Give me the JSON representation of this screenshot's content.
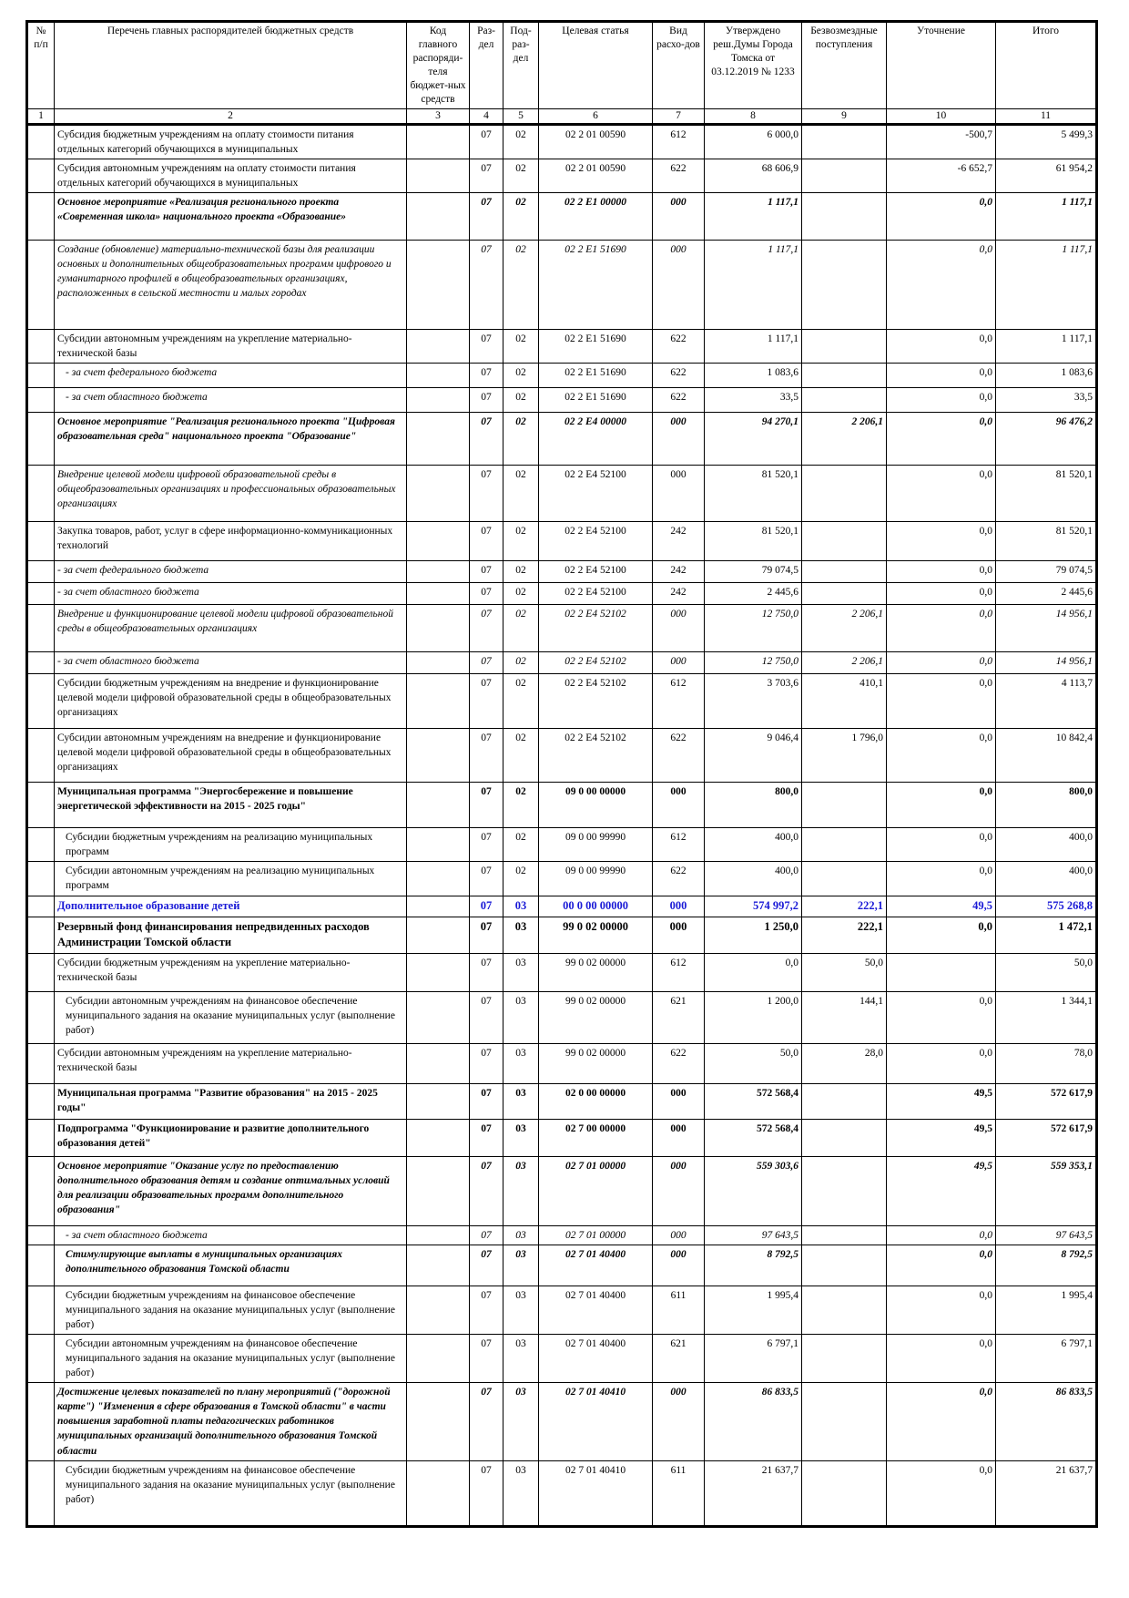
{
  "header": {
    "cols": [
      "№ п/п",
      "Перечень главных распорядителей бюджетных средств",
      "Код главного распоряди-теля бюджет-ных средств",
      "Раз-дел",
      "Под-раз-дел",
      "Целевая статья",
      "Вид расхо-дов",
      "Утверждено реш.Думы Города Томска от 03.12.2019 № 1233",
      "Безвозмездные поступления",
      "Уточнение",
      "Итого"
    ],
    "nums": [
      "1",
      "2",
      "3",
      "4",
      "5",
      "6",
      "7",
      "8",
      "9",
      "10",
      "11"
    ]
  },
  "rows": [
    {
      "text": "Субсидия бюджетным учреждениям на оплату стоимости питания отдельных категорий обучающихся в муниципальных",
      "rz": "07",
      "pr": "02",
      "cs": "02 2 01 00590",
      "vr": "612",
      "v8": "6 000,0",
      "v9": "",
      "v10": "-500,7",
      "v11": "5 499,3",
      "style": ""
    },
    {
      "text": "Субсидия автономным учреждениям на оплату стоимости питания отдельных категорий обучающихся в муниципальных",
      "rz": "07",
      "pr": "02",
      "cs": "02 2 01 00590",
      "vr": "622",
      "v8": "68 606,9",
      "v9": "",
      "v10": "-6 652,7",
      "v11": "61 954,2",
      "style": ""
    },
    {
      "text": "Основное мероприятие «Реализация регионального проекта «Современная школа» национального проекта «Образование»",
      "rz": "07",
      "pr": "02",
      "cs": "02 2 E1 00000",
      "vr": "000",
      "v8": "1 117,1",
      "v9": "",
      "v10": "0,0",
      "v11": "1 117,1",
      "style": "bi"
    },
    {
      "text": "Создание (обновление) материально-технической базы для реализации основных и дополнительных общеобразовательных программ цифрового и гуманитарного профилей в общеобразовательных организациях, расположенных в сельской местности и малых городах",
      "rz": "07",
      "pr": "02",
      "cs": "02 2 E1 51690",
      "vr": "000",
      "v8": "1 117,1",
      "v9": "",
      "v10": "0,0",
      "v11": "1 117,1",
      "style": "i"
    },
    {
      "text": "Субсидии автономным учреждениям на укрепление материально-технической базы",
      "rz": "07",
      "pr": "02",
      "cs": "02 2 E1 51690",
      "vr": "622",
      "v8": "1 117,1",
      "v9": "",
      "v10": "0,0",
      "v11": "1 117,1",
      "style": ""
    },
    {
      "text": "- за счет федерального бюджета",
      "rz": "07",
      "pr": "02",
      "cs": "02 2 E1 51690",
      "vr": "622",
      "v8": "1 083,6",
      "v9": "",
      "v10": "0,0",
      "v11": "1 083,6",
      "style": "it",
      "indent": true
    },
    {
      "text": "- за счет областного бюджета",
      "rz": "07",
      "pr": "02",
      "cs": "02 2 E1 51690",
      "vr": "622",
      "v8": "33,5",
      "v9": "",
      "v10": "0,0",
      "v11": "33,5",
      "style": "it",
      "indent": true
    },
    {
      "text": "Основное мероприятие \"Реализация регионального проекта \"Цифровая образовательная среда\" национального проекта \"Образование\"",
      "rz": "07",
      "pr": "02",
      "cs": "02 2 E4 00000",
      "vr": "000",
      "v8": "94 270,1",
      "v9": "2 206,1",
      "v10": "0,0",
      "v11": "96 476,2",
      "style": "bi"
    },
    {
      "text": "Внедрение целевой модели цифровой образовательной среды в общеобразовательных организациях и профессиональных образовательных организациях",
      "rz": "07",
      "pr": "02",
      "cs": "02 2 E4 52100",
      "vr": "000",
      "v8": "81 520,1",
      "v9": "",
      "v10": "0,0",
      "v11": "81 520,1",
      "style": "it"
    },
    {
      "text": "Закупка товаров, работ, услуг в сфере информационно-коммуникационных технологий",
      "rz": "07",
      "pr": "02",
      "cs": "02 2 E4 52100",
      "vr": "242",
      "v8": "81 520,1",
      "v9": "",
      "v10": "0,0",
      "v11": "81 520,1",
      "style": ""
    },
    {
      "text": "- за счет федерального бюджета",
      "rz": "07",
      "pr": "02",
      "cs": "02 2 E4 52100",
      "vr": "242",
      "v8": "79 074,5",
      "v9": "",
      "v10": "0,0",
      "v11": "79 074,5",
      "style": "it"
    },
    {
      "text": "- за счет областного бюджета",
      "rz": "07",
      "pr": "02",
      "cs": "02 2 E4 52100",
      "vr": "242",
      "v8": "2 445,6",
      "v9": "",
      "v10": "0,0",
      "v11": "2 445,6",
      "style": "it"
    },
    {
      "text": "Внедрение и функционирование целевой модели цифровой образовательной среды в общеобразовательных организациях",
      "rz": "07",
      "pr": "02",
      "cs": "02 2 E4 52102",
      "vr": "000",
      "v8": "12 750,0",
      "v9": "2 206,1",
      "v10": "0,0",
      "v11": "14 956,1",
      "style": "i"
    },
    {
      "text": "- за счет областного бюджета",
      "rz": "07",
      "pr": "02",
      "cs": "02 2 E4 52102",
      "vr": "000",
      "v8": "12 750,0",
      "v9": "2 206,1",
      "v10": "0,0",
      "v11": "14 956,1",
      "style": "i"
    },
    {
      "text": "Субсидии бюджетным учреждениям на внедрение и функционирование целевой модели цифровой образовательной среды в общеобразовательных организациях",
      "rz": "07",
      "pr": "02",
      "cs": "02 2 E4 52102",
      "vr": "612",
      "v8": "3 703,6",
      "v9": "410,1",
      "v10": "0,0",
      "v11": "4 113,7",
      "style": ""
    },
    {
      "text": "Субсидии автономным учреждениям на внедрение и функционирование целевой модели цифровой образовательной среды в общеобразовательных организациях",
      "rz": "07",
      "pr": "02",
      "cs": "02 2 E4 52102",
      "vr": "622",
      "v8": "9 046,4",
      "v9": "1 796,0",
      "v10": "0,0",
      "v11": "10 842,4",
      "style": ""
    },
    {
      "text": "Муниципальная программа \"Энергосбережение и повышение энергетической эффективности на 2015 - 2025 годы\"",
      "rz": "07",
      "pr": "02",
      "cs": "09 0 00 00000",
      "vr": "000",
      "v8": "800,0",
      "v9": "",
      "v10": "0,0",
      "v11": "800,0",
      "style": "b"
    },
    {
      "text": "Субсидии бюджетным учреждениям на реализацию муниципальных программ",
      "rz": "07",
      "pr": "02",
      "cs": "09 0 00 99990",
      "vr": "612",
      "v8": "400,0",
      "v9": "",
      "v10": "0,0",
      "v11": "400,0",
      "style": "",
      "indent": true
    },
    {
      "text": "Субсидии автономным учреждениям на реализацию муниципальных программ",
      "rz": "07",
      "pr": "02",
      "cs": "09 0 00 99990",
      "vr": "622",
      "v8": "400,0",
      "v9": "",
      "v10": "0,0",
      "v11": "400,0",
      "style": "",
      "indent": true
    },
    {
      "text": "Дополнительное образование детей",
      "rz": "07",
      "pr": "03",
      "cs": "00 0 00 00000",
      "vr": "000",
      "v8": "574 997,2",
      "v9": "222,1",
      "v10": "49,5",
      "v11": "575 268,8",
      "style": "blue"
    },
    {
      "text": "Резервный фонд финансирования непредвиденных расходов Администрации Томской области",
      "rz": "07",
      "pr": "03",
      "cs": "99 0 02 00000",
      "vr": "000",
      "v8": "1 250,0",
      "v9": "222,1",
      "v10": "0,0",
      "v11": "1 472,1",
      "style": "bl"
    },
    {
      "text": "Субсидии бюджетным учреждениям на укрепление материально-технической базы",
      "rz": "07",
      "pr": "03",
      "cs": "99 0 02 00000",
      "vr": "612",
      "v8": "0,0",
      "v9": "50,0",
      "v10": "",
      "v11": "50,0",
      "style": ""
    },
    {
      "text": "Субсидии автономным учреждениям на финансовое обеспечение муниципального задания на оказание муниципальных услуг (выполнение работ)",
      "rz": "07",
      "pr": "03",
      "cs": "99 0 02 00000",
      "vr": "621",
      "v8": "1 200,0",
      "v9": "144,1",
      "v10": "0,0",
      "v11": "1 344,1",
      "style": "",
      "indent": true
    },
    {
      "text": "Субсидии автономным учреждениям на укрепление материально-технической базы",
      "rz": "07",
      "pr": "03",
      "cs": "99 0 02 00000",
      "vr": "622",
      "v8": "50,0",
      "v9": "28,0",
      "v10": "0,0",
      "v11": "78,0",
      "style": ""
    },
    {
      "text": "Муниципальная программа \"Развитие образования\" на 2015 - 2025 годы\"",
      "rz": "07",
      "pr": "03",
      "cs": "02 0 00 00000",
      "vr": "000",
      "v8": "572 568,4",
      "v9": "",
      "v10": "49,5",
      "v11": "572 617,9",
      "style": "b"
    },
    {
      "text": "Подпрограмма \"Функционирование и развитие дополнительного образования детей\"",
      "rz": "07",
      "pr": "03",
      "cs": "02 7 00 00000",
      "vr": "000",
      "v8": "572 568,4",
      "v9": "",
      "v10": "49,5",
      "v11": "572 617,9",
      "style": "b"
    },
    {
      "text": "Основное мероприятие \"Оказание услуг по предоставлению дополнительного образования детям и создание оптимальных условий для реализации образовательных программ дополнительного образования\"",
      "rz": "07",
      "pr": "03",
      "cs": "02 7 01 00000",
      "vr": "000",
      "v8": "559 303,6",
      "v9": "",
      "v10": "49,5",
      "v11": "559 353,1",
      "style": "bi"
    },
    {
      "text": "- за счет областного бюджета",
      "rz": "07",
      "pr": "03",
      "cs": "02 7 01 00000",
      "vr": "000",
      "v8": "97 643,5",
      "v9": "",
      "v10": "0,0",
      "v11": "97 643,5",
      "style": "i",
      "indent": true
    },
    {
      "text": "Стимулирующие выплаты в муниципальных организациях дополнительного образования Томской области",
      "rz": "07",
      "pr": "03",
      "cs": "02 7 01 40400",
      "vr": "000",
      "v8": "8 792,5",
      "v9": "",
      "v10": "0,0",
      "v11": "8 792,5",
      "style": "bi",
      "indent": true
    },
    {
      "text": "Субсидии бюджетным учреждениям на финансовое обеспечение муниципального задания на оказание муниципальных услуг (выполнение работ)",
      "rz": "07",
      "pr": "03",
      "cs": "02 7 01 40400",
      "vr": "611",
      "v8": "1 995,4",
      "v9": "",
      "v10": "0,0",
      "v11": "1 995,4",
      "style": "",
      "indent": true
    },
    {
      "text": "Субсидии автономным учреждениям на финансовое обеспечение муниципального задания на оказание муниципальных услуг (выполнение работ)",
      "rz": "07",
      "pr": "03",
      "cs": "02 7 01 40400",
      "vr": "621",
      "v8": "6 797,1",
      "v9": "",
      "v10": "0,0",
      "v11": "6 797,1",
      "style": "",
      "indent": true
    },
    {
      "text": "Достижение целевых показателей по плану мероприятий (\"дорожной карте\") \"Изменения в сфере образования в Томской области\" в части повышения заработной платы педагогических работников муниципальных организаций дополнительного образования Томской области",
      "rz": "07",
      "pr": "03",
      "cs": "02 7 01 40410",
      "vr": "000",
      "v8": "86 833,5",
      "v9": "",
      "v10": "0,0",
      "v11": "86 833,5",
      "style": "bi"
    },
    {
      "text": "Субсидии бюджетным учреждениям на финансовое обеспечение муниципального задания на оказание муниципальных услуг (выполнение работ)",
      "rz": "07",
      "pr": "03",
      "cs": "02 7 01 40410",
      "vr": "611",
      "v8": "21 637,7",
      "v9": "",
      "v10": "0,0",
      "v11": "21 637,7",
      "style": "",
      "indent": true
    }
  ]
}
